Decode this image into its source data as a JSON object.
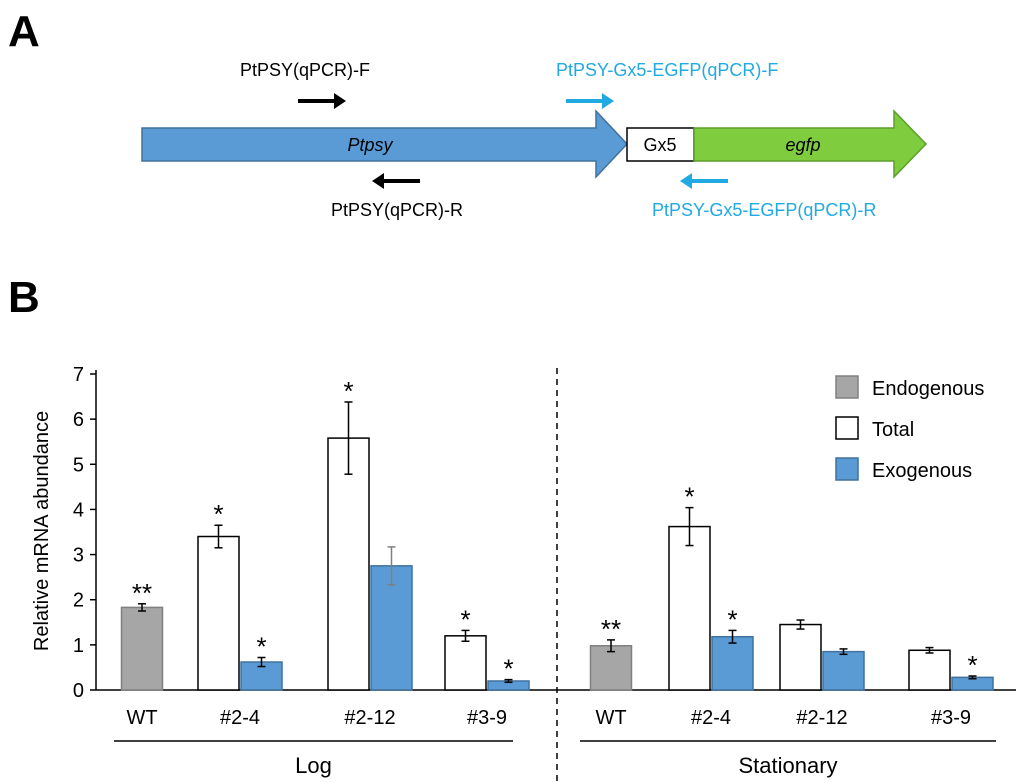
{
  "panel_a": {
    "label": "A",
    "gene_label": "Ptpsy",
    "tag_label": "Gx5",
    "egfp_label": "egfp",
    "primers": {
      "ptpsy_f": "PtPSY(qPCR)-F",
      "ptpsy_r": "PtPSY(qPCR)-R",
      "fusion_f": "PtPSY-Gx5-EGFP(qPCR)-F",
      "fusion_r": "PtPSY-Gx5-EGFP(qPCR)-R"
    },
    "colors": {
      "gene": "#5b9bd5",
      "egfp": "#7fcc3f",
      "tag_box": "#ffffff",
      "primer_black": "#000000",
      "primer_cyan": "#21a9e1"
    }
  },
  "panel_b": {
    "label": "B"
  },
  "chart_data": {
    "type": "bar",
    "ylabel": "Relative mRNA abundance",
    "ylim": [
      0,
      7
    ],
    "yticks": [
      0,
      1,
      2,
      3,
      4,
      5,
      6,
      7
    ],
    "groups": [
      {
        "name": "Log",
        "categories": [
          "WT",
          "#2-4",
          "#2-12",
          "#3-9"
        ]
      },
      {
        "name": "Stationary",
        "categories": [
          "WT",
          "#2-4",
          "#2-12",
          "#3-9"
        ]
      }
    ],
    "legend": {
      "position": "top-right",
      "entries": [
        {
          "name": "Endogenous",
          "color": "#a6a6a6"
        },
        {
          "name": "Total",
          "color": "#ffffff"
        },
        {
          "name": "Exogenous",
          "color": "#5b9bd5"
        }
      ]
    },
    "bars": [
      {
        "group": "Log",
        "category": "WT",
        "series": "Endogenous",
        "value": 1.83,
        "error": 0.08,
        "marker": "**"
      },
      {
        "group": "Log",
        "category": "#2-4",
        "series": "Total",
        "value": 3.4,
        "error": 0.25,
        "marker": "*"
      },
      {
        "group": "Log",
        "category": "#2-4",
        "series": "Exogenous",
        "value": 0.62,
        "error": 0.1,
        "marker": "*"
      },
      {
        "group": "Log",
        "category": "#2-12",
        "series": "Total",
        "value": 5.58,
        "error": 0.8,
        "marker": "*"
      },
      {
        "group": "Log",
        "category": "#2-12",
        "series": "Exogenous",
        "value": 2.75,
        "error": 0.42,
        "marker": ""
      },
      {
        "group": "Log",
        "category": "#3-9",
        "series": "Total",
        "value": 1.2,
        "error": 0.12,
        "marker": "*"
      },
      {
        "group": "Log",
        "category": "#3-9",
        "series": "Exogenous",
        "value": 0.2,
        "error": 0.03,
        "marker": "*"
      },
      {
        "group": "Stationary",
        "category": "WT",
        "series": "Endogenous",
        "value": 0.98,
        "error": 0.13,
        "marker": "**"
      },
      {
        "group": "Stationary",
        "category": "#2-4",
        "series": "Total",
        "value": 3.62,
        "error": 0.42,
        "marker": "*"
      },
      {
        "group": "Stationary",
        "category": "#2-4",
        "series": "Exogenous",
        "value": 1.18,
        "error": 0.14,
        "marker": "*"
      },
      {
        "group": "Stationary",
        "category": "#2-12",
        "series": "Total",
        "value": 1.45,
        "error": 0.1,
        "marker": ""
      },
      {
        "group": "Stationary",
        "category": "#2-12",
        "series": "Exogenous",
        "value": 0.85,
        "error": 0.06,
        "marker": ""
      },
      {
        "group": "Stationary",
        "category": "#3-9",
        "series": "Total",
        "value": 0.88,
        "error": 0.06,
        "marker": ""
      },
      {
        "group": "Stationary",
        "category": "#3-9",
        "series": "Exogenous",
        "value": 0.28,
        "error": 0.03,
        "marker": "*"
      }
    ]
  }
}
